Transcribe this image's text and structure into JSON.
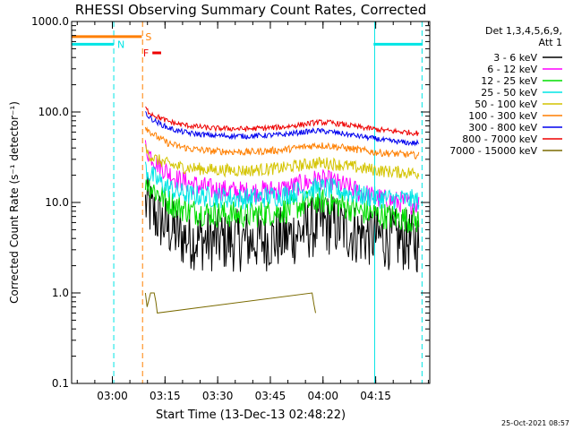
{
  "chart_data": {
    "type": "line",
    "title": "RHESSI Observing Summary Count Rates, Corrected",
    "xlabel": "Start Time (13-Dec-13 02:48:22)",
    "ylabel": "Corrected Count Rate (s⁻¹ detector⁻¹)",
    "x_start": "02:48:22",
    "x_range_minutes": [
      0,
      102
    ],
    "xticks": [
      {
        "label": "03:00",
        "minute": 11.6
      },
      {
        "label": "03:15",
        "minute": 26.6
      },
      {
        "label": "03:30",
        "minute": 41.6
      },
      {
        "label": "03:45",
        "minute": 56.6
      },
      {
        "label": "04:00",
        "minute": 71.6
      },
      {
        "label": "04:15",
        "minute": 86.6
      }
    ],
    "yscale": "log",
    "ylim": [
      0.1,
      1000
    ],
    "yticks": [
      "0.1",
      "1.0",
      "10.0",
      "100.0",
      "1000.0"
    ],
    "legend": {
      "placement": "right",
      "header": [
        "Det 1,3,4,5,6,9,",
        "Att 1"
      ],
      "entries": [
        {
          "label": "3 - 6 keV",
          "color": "#000000"
        },
        {
          "label": "6 - 12 keV",
          "color": "#ff00ff"
        },
        {
          "label": "12 - 25 keV",
          "color": "#00dd00"
        },
        {
          "label": "25 - 50 keV",
          "color": "#00e5e5"
        },
        {
          "label": "50 - 100 keV",
          "color": "#d4c400"
        },
        {
          "label": "100 - 300 keV",
          "color": "#ff7f00"
        },
        {
          "label": "300 - 800 keV",
          "color": "#0000ee"
        },
        {
          "label": "800 - 7000 keV",
          "color": "#ee0000"
        },
        {
          "label": "7000 - 15000 keV",
          "color": "#7a6a00"
        }
      ]
    },
    "flags": [
      {
        "label": "N",
        "color": "#00e5e5",
        "segments": [
          [
            0,
            12
          ],
          [
            86,
            100
          ]
        ],
        "level": 560
      },
      {
        "label": "S",
        "color": "#ff7f00",
        "segments": [
          [
            0,
            20
          ]
        ],
        "level": 680
      },
      {
        "label": "F",
        "color": "#ee0000",
        "segments": [
          [
            23,
            25.5
          ]
        ],
        "level": 450
      }
    ],
    "vlines": [
      {
        "minute": 0,
        "color": "#00e5e5",
        "style": "solid"
      },
      {
        "minute": 12.0,
        "color": "#00e5e5",
        "style": "dashed"
      },
      {
        "minute": 20.2,
        "color": "#ff7f00",
        "style": "dashed"
      },
      {
        "minute": 86.3,
        "color": "#00e5e5",
        "style": "solid"
      },
      {
        "minute": 99.8,
        "color": "#00e5e5",
        "style": "dashed"
      }
    ],
    "series": [
      {
        "name": "3 - 6 keV",
        "color": "#000000",
        "noise": 0.35,
        "x": [
          21,
          22,
          23,
          25,
          27,
          29,
          31,
          34,
          38,
          45,
          55,
          62,
          68,
          72,
          76,
          80,
          86,
          90,
          95,
          99
        ],
        "y": [
          9.5,
          9,
          7.5,
          6.5,
          5.5,
          4.8,
          4.2,
          4,
          3.8,
          3.8,
          3.8,
          4.2,
          5.2,
          5.8,
          5.5,
          4.6,
          4.2,
          4,
          3.8,
          3.6
        ]
      },
      {
        "name": "6 - 12 keV",
        "color": "#ff00ff",
        "noise": 0.12,
        "x": [
          21,
          22,
          24,
          27,
          30,
          34,
          40,
          50,
          60,
          66,
          70,
          74,
          78,
          82,
          86,
          90,
          95,
          99
        ],
        "y": [
          40,
          35,
          28,
          22,
          18,
          16,
          14,
          13,
          14,
          16,
          18,
          17,
          15,
          13,
          11.5,
          10.5,
          10,
          9.5
        ]
      },
      {
        "name": "12 - 25 keV",
        "color": "#00dd00",
        "noise": 0.15,
        "x": [
          21,
          22,
          24,
          27,
          30,
          34,
          40,
          50,
          60,
          66,
          70,
          74,
          78,
          82,
          86,
          90,
          95,
          99
        ],
        "y": [
          18,
          16,
          13,
          10.5,
          9,
          8,
          7.5,
          7.2,
          8,
          9.5,
          10.5,
          10,
          9,
          8,
          7.5,
          7,
          6.6,
          6.2
        ]
      },
      {
        "name": "25 - 50 keV",
        "color": "#00e5e5",
        "noise": 0.12,
        "x": [
          21,
          22,
          24,
          27,
          30,
          34,
          40,
          50,
          60,
          66,
          70,
          74,
          78,
          82,
          86,
          90,
          95,
          99
        ],
        "y": [
          24,
          21,
          18,
          15,
          13,
          12,
          11.5,
          11,
          12,
          13.5,
          14.5,
          14,
          13,
          12,
          11.5,
          11,
          10.8,
          10.5
        ]
      },
      {
        "name": "50 - 100 keV",
        "color": "#d4c400",
        "noise": 0.07,
        "x": [
          21,
          22,
          24,
          27,
          30,
          34,
          40,
          50,
          60,
          66,
          70,
          74,
          78,
          82,
          86,
          90,
          95,
          99
        ],
        "y": [
          38,
          34,
          30,
          27,
          25,
          24,
          23,
          22.5,
          24,
          26,
          27.5,
          27,
          25.5,
          24,
          23,
          22,
          21.5,
          21
        ]
      },
      {
        "name": "100 - 300 keV",
        "color": "#ff7f00",
        "noise": 0.04,
        "x": [
          21,
          22,
          24,
          27,
          30,
          34,
          40,
          50,
          60,
          66,
          70,
          74,
          78,
          82,
          86,
          90,
          95,
          99
        ],
        "y": [
          70,
          62,
          54,
          46,
          42,
          39,
          37,
          36,
          38,
          41,
          43,
          42,
          40,
          38,
          36,
          35,
          34,
          33
        ]
      },
      {
        "name": "300 - 800 keV",
        "color": "#0000ee",
        "noise": 0.03,
        "x": [
          21,
          22,
          24,
          27,
          30,
          34,
          40,
          50,
          60,
          66,
          70,
          74,
          78,
          82,
          86,
          90,
          95,
          99
        ],
        "y": [
          100,
          88,
          78,
          68,
          62,
          58,
          55,
          54,
          56,
          60,
          62,
          60,
          57,
          54,
          51,
          48,
          46,
          45
        ]
      },
      {
        "name": "800 - 7000 keV",
        "color": "#ee0000",
        "noise": 0.03,
        "x": [
          21,
          22,
          24,
          27,
          30,
          34,
          40,
          50,
          60,
          66,
          70,
          74,
          78,
          82,
          86,
          90,
          95,
          99
        ],
        "y": [
          110,
          100,
          90,
          80,
          74,
          70,
          66,
          65,
          68,
          73,
          77,
          76,
          72,
          68,
          65,
          62,
          60,
          58
        ]
      },
      {
        "name": "7000 - 15000 keV",
        "color": "#7a6a00",
        "noise": 0,
        "x": [
          21,
          21.5,
          22.5,
          23.5,
          24,
          24.4,
          68.5,
          69,
          69.5
        ],
        "y": [
          1.0,
          0.7,
          1.0,
          1.0,
          0.8,
          0.6,
          1.0,
          0.75,
          0.6
        ]
      }
    ]
  },
  "footer": {
    "timestamp": "25-Oct-2021 08:57"
  }
}
